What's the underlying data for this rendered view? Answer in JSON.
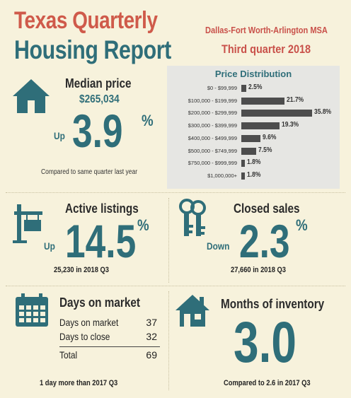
{
  "header": {
    "title_line1": "Texas Quarterly",
    "title_line2": "Housing Report",
    "region": "Dallas-Fort Worth-Arlington MSA",
    "period": "Third quarter 2018"
  },
  "median_price": {
    "label": "Median price",
    "value": "$265,034",
    "direction": "Up",
    "change": "3.9",
    "pct_sign": "%",
    "comparison": "Compared to same quarter last year",
    "icon": "house-icon"
  },
  "price_distribution": {
    "title": "Price Distribution",
    "bar_color": "#4d4d4d",
    "rows": [
      {
        "range": "$0 - $99,999",
        "pct": 2.5,
        "label": "2.5%"
      },
      {
        "range": "$100,000 - $199,999",
        "pct": 21.7,
        "label": "21.7%"
      },
      {
        "range": "$200,000 - $299,999",
        "pct": 35.8,
        "label": "35.8%"
      },
      {
        "range": "$300,000 - $399,999",
        "pct": 19.3,
        "label": "19.3%"
      },
      {
        "range": "$400,000 - $499,999",
        "pct": 9.6,
        "label": "9.6%"
      },
      {
        "range": "$500,000 - $749,999",
        "pct": 7.5,
        "label": "7.5%"
      },
      {
        "range": "$750,000 - $999,999",
        "pct": 1.8,
        "label": "1.8%"
      },
      {
        "range": "$1,000,000+",
        "pct": 1.8,
        "label": "1.8%"
      }
    ]
  },
  "active_listings": {
    "label": "Active listings",
    "direction": "Up",
    "change": "14.5",
    "pct_sign": "%",
    "detail": "25,230 in 2018 Q3",
    "icon": "for-sale-sign-icon"
  },
  "closed_sales": {
    "label": "Closed sales",
    "direction": "Down",
    "change": "2.3",
    "pct_sign": "%",
    "detail": "27,660 in 2018 Q3",
    "icon": "keys-icon"
  },
  "days_on_market": {
    "label": "Days on market",
    "rows": [
      {
        "key": "Days on market",
        "value": "37"
      },
      {
        "key": "Days to close",
        "value": "32"
      }
    ],
    "total_key": "Total",
    "total_value": "69",
    "detail": "1 day more than 2017 Q3",
    "icon": "calendar-icon"
  },
  "months_inventory": {
    "label": "Months of inventory",
    "value": "3.0",
    "detail": "Compared to 2.6 in 2017 Q3",
    "icon": "house-icon"
  },
  "colors": {
    "background": "#f7f2dc",
    "accent_red": "#cf5a4a",
    "accent_teal": "#2f6e79"
  }
}
